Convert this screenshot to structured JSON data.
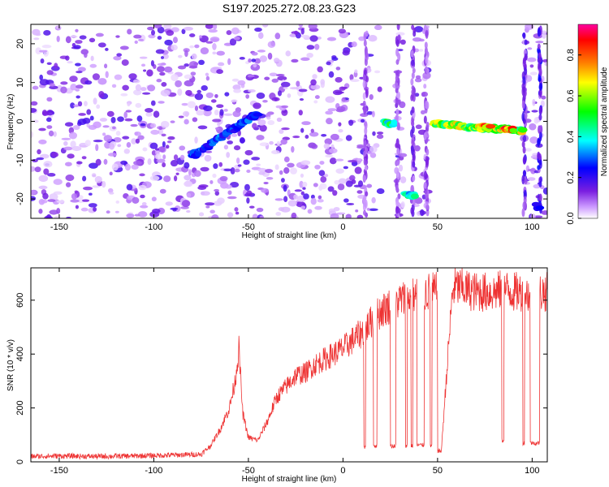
{
  "title": "S197.2025.272.08.23.G23",
  "chart_data": [
    {
      "type": "heatmap",
      "xlabel": "Height of straight line (km)",
      "ylabel": "Frequency (Hz)",
      "xlim": [
        -165,
        108
      ],
      "ylim": [
        -25,
        25
      ],
      "x_ticks": [
        -150,
        -100,
        -50,
        0,
        50,
        100
      ],
      "y_ticks": [
        -20,
        -10,
        0,
        10,
        20
      ],
      "colorbar": {
        "label": "Normalized spectral amplitude",
        "range": [
          0,
          0.95
        ],
        "ticks": [
          0.0,
          0.2,
          0.4,
          0.6,
          0.8
        ],
        "colors": [
          "#ffffff",
          "#cc99ff",
          "#7a1fe0",
          "#0000ff",
          "#00ffff",
          "#00ff00",
          "#ffff00",
          "#ff8000",
          "#ff0000",
          "#ff00a0"
        ]
      },
      "features": [
        {
          "x": [
            -80,
            -45
          ],
          "y": [
            -9,
            2
          ],
          "amplitude": 0.35
        },
        {
          "x": [
            22,
            27
          ],
          "y": [
            -0.5,
            -0.5
          ],
          "amplitude": 0.6
        },
        {
          "x": [
            33,
            38
          ],
          "y": [
            -19,
            -19
          ],
          "amplitude": 0.5
        },
        {
          "x": [
            48,
            95
          ],
          "y": [
            -0.5,
            -2.5
          ],
          "amplitude": 0.75
        },
        {
          "x": [
            70,
            78
          ],
          "y": [
            -1.5,
            -1.5
          ],
          "amplitude": 0.9
        },
        {
          "x": [
            85,
            90
          ],
          "y": [
            -2,
            -2
          ],
          "amplitude": 0.95
        },
        {
          "x": [
            102,
            104
          ],
          "y": [
            -22,
            -22
          ],
          "amplitude": 0.3
        }
      ]
    },
    {
      "type": "line",
      "xlabel": "Height of straight line (km)",
      "ylabel": "SNR (10 * v/v)",
      "xlim": [
        -165,
        108
      ],
      "ylim": [
        0,
        720
      ],
      "x_ticks": [
        -150,
        -100,
        -50,
        0,
        50,
        100
      ],
      "y_ticks": [
        0,
        200,
        400,
        600
      ],
      "color": "#ee3333",
      "x": [
        -165,
        -150,
        -130,
        -110,
        -90,
        -75,
        -70,
        -65,
        -60,
        -57,
        -55,
        -53,
        -50,
        -45,
        -40,
        -35,
        -30,
        -25,
        -20,
        -15,
        -10,
        -5,
        0,
        5,
        10,
        15,
        20,
        25,
        30,
        35,
        40,
        45,
        50,
        52,
        55,
        58,
        60,
        65,
        70,
        75,
        80,
        85,
        90,
        95,
        100,
        105,
        108
      ],
      "values": [
        20,
        22,
        20,
        22,
        25,
        28,
        60,
        120,
        200,
        300,
        420,
        180,
        90,
        80,
        150,
        240,
        280,
        320,
        330,
        360,
        380,
        400,
        420,
        450,
        480,
        520,
        560,
        580,
        600,
        610,
        620,
        630,
        630,
        40,
        350,
        640,
        650,
        640,
        630,
        630,
        630,
        640,
        630,
        630,
        620,
        630,
        630
      ],
      "dropouts": [
        {
          "x0": 11,
          "x1": 12,
          "level": 55
        },
        {
          "x0": 16,
          "x1": 18,
          "level": 60
        },
        {
          "x0": 25,
          "x1": 28,
          "level": 58
        },
        {
          "x0": 33,
          "x1": 34,
          "level": 60
        },
        {
          "x0": 36,
          "x1": 37,
          "level": 60
        },
        {
          "x0": 39,
          "x1": 43,
          "level": 62
        },
        {
          "x0": 46,
          "x1": 47,
          "level": 60
        },
        {
          "x0": 50,
          "x1": 52,
          "level": 40
        },
        {
          "x0": 84,
          "x1": 85,
          "level": 80
        },
        {
          "x0": 95,
          "x1": 96,
          "level": 70
        },
        {
          "x0": 99,
          "x1": 104,
          "level": 70
        }
      ]
    }
  ]
}
